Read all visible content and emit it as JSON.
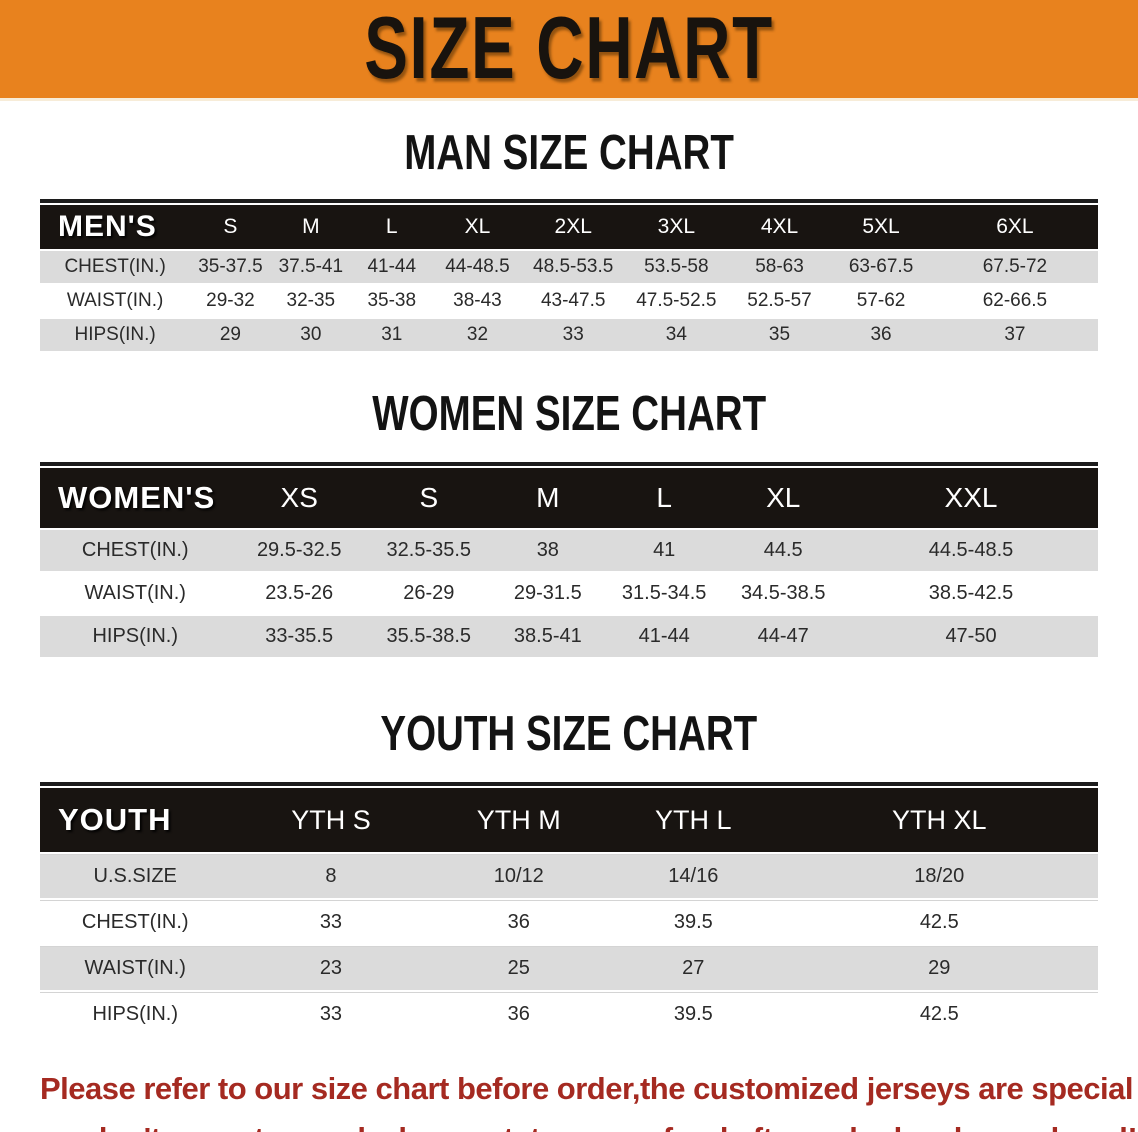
{
  "banner": {
    "title": "SIZE CHART",
    "bg_color": "#E8821E",
    "text_color": "#18130e"
  },
  "colors": {
    "header_band": "#181411",
    "row_gray": "#dbdbdb",
    "row_white": "#ffffff",
    "footer_red": "#A52A21"
  },
  "sections": [
    {
      "id": "men",
      "heading": "MAN SIZE CHART",
      "table": {
        "header_label": "MEN'S",
        "columns": [
          "S",
          "M",
          "L",
          "XL",
          "2XL",
          "3XL",
          "4XL",
          "5XL",
          "6XL"
        ],
        "rows": [
          {
            "label": "CHEST(IN.)",
            "values": [
              "35-37.5",
              "37.5-41",
              "41-44",
              "44-48.5",
              "48.5-53.5",
              "53.5-58",
              "58-63",
              "63-67.5",
              "67.5-72"
            ]
          },
          {
            "label": "WAIST(IN.)",
            "values": [
              "29-32",
              "32-35",
              "35-38",
              "38-43",
              "43-47.5",
              "47.5-52.5",
              "52.5-57",
              "57-62",
              "62-66.5"
            ]
          },
          {
            "label": "HIPS(IN.)",
            "values": [
              "29",
              "30",
              "31",
              "32",
              "33",
              "34",
              "35",
              "36",
              "37"
            ]
          }
        ]
      }
    },
    {
      "id": "women",
      "heading": "WOMEN SIZE CHART",
      "table": {
        "header_label": "WOMEN'S",
        "columns": [
          "XS",
          "S",
          "M",
          "L",
          "XL",
          "XXL"
        ],
        "rows": [
          {
            "label": "CHEST(IN.)",
            "values": [
              "29.5-32.5",
              "32.5-35.5",
              "38",
              "41",
              "44.5",
              "44.5-48.5"
            ]
          },
          {
            "label": "WAIST(IN.)",
            "values": [
              "23.5-26",
              "26-29",
              "29-31.5",
              "31.5-34.5",
              "34.5-38.5",
              "38.5-42.5"
            ]
          },
          {
            "label": "HIPS(IN.)",
            "values": [
              "33-35.5",
              "35.5-38.5",
              "38.5-41",
              "41-44",
              "44-47",
              "47-50"
            ]
          }
        ]
      }
    },
    {
      "id": "youth",
      "heading": "YOUTH SIZE CHART",
      "table": {
        "header_label": "YOUTH",
        "columns": [
          "YTH S",
          "YTH M",
          "YTH L",
          "YTH XL"
        ],
        "rows": [
          {
            "label": "U.S.SIZE",
            "values": [
              "8",
              "10/12",
              "14/16",
              "18/20"
            ]
          },
          {
            "label": "CHEST(IN.)",
            "values": [
              "33",
              "36",
              "39.5",
              "42.5"
            ]
          },
          {
            "label": "WAIST(IN.)",
            "values": [
              "23",
              "25",
              "27",
              "29"
            ]
          },
          {
            "label": "HIPS(IN.)",
            "values": [
              "33",
              "36",
              "39.5",
              "42.5"
            ]
          }
        ]
      }
    }
  ],
  "footer_note": {
    "lines": [
      "Please refer to our size chart before order,the customized jerseys are special products,",
      "we don't accept cancel, change, teturn or refund after order has been placed!"
    ]
  }
}
